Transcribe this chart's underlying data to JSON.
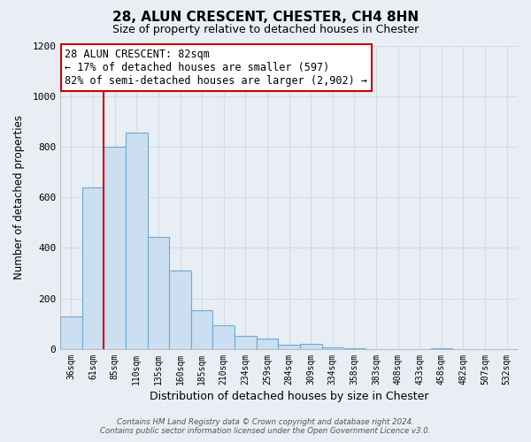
{
  "title": "28, ALUN CRESCENT, CHESTER, CH4 8HN",
  "subtitle": "Size of property relative to detached houses in Chester",
  "xlabel": "Distribution of detached houses by size in Chester",
  "ylabel": "Number of detached properties",
  "bin_labels": [
    "36sqm",
    "61sqm",
    "85sqm",
    "110sqm",
    "135sqm",
    "160sqm",
    "185sqm",
    "210sqm",
    "234sqm",
    "259sqm",
    "284sqm",
    "309sqm",
    "334sqm",
    "358sqm",
    "383sqm",
    "408sqm",
    "433sqm",
    "458sqm",
    "482sqm",
    "507sqm",
    "532sqm"
  ],
  "bar_values": [
    130,
    640,
    800,
    855,
    445,
    310,
    155,
    93,
    52,
    42,
    17,
    22,
    8,
    3,
    0,
    0,
    0,
    4,
    0,
    0,
    0
  ],
  "bar_color": "#ccdff0",
  "bar_edge_color": "#6aaad4",
  "vline_color": "#cc0000",
  "annotation_text": "28 ALUN CRESCENT: 82sqm\n← 17% of detached houses are smaller (597)\n82% of semi-detached houses are larger (2,902) →",
  "annotation_box_color": "#ffffff",
  "annotation_box_edge": "#cc0000",
  "ylim": [
    0,
    1200
  ],
  "yticks": [
    0,
    200,
    400,
    600,
    800,
    1000,
    1200
  ],
  "footer_line1": "Contains HM Land Registry data © Crown copyright and database right 2024.",
  "footer_line2": "Contains public sector information licensed under the Open Government Licence v3.0.",
  "background_color": "#e8eef4",
  "grid_color": "#d0dce8",
  "plot_bg_color": "#e8eef4"
}
